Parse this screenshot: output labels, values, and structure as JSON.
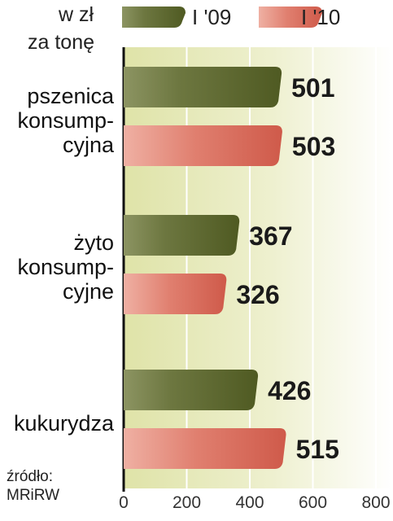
{
  "header": {
    "unit_line1": "w zł",
    "unit_line2": "za tonę"
  },
  "source": {
    "line1": "źródło:",
    "line2": "MRiRW"
  },
  "colors": {
    "series_2009": "#5e6b30",
    "series_2010": "#d96a5c",
    "background_band": "#e8ebc2"
  },
  "chart_data": {
    "type": "bar",
    "orientation": "horizontal",
    "categories": [
      [
        "pszenica",
        "konsump-",
        "cyjna"
      ],
      [
        "żyto",
        "konsump-",
        "cyjne"
      ],
      [
        "kukurydza"
      ]
    ],
    "series": [
      {
        "name": "I '09",
        "values": [
          501,
          367,
          426
        ]
      },
      {
        "name": "I '10",
        "values": [
          503,
          326,
          515
        ]
      }
    ],
    "xticks": [
      "0",
      "200",
      "400",
      "600",
      "800"
    ],
    "xlim": [
      0,
      800
    ],
    "legend": "top",
    "grid": true
  }
}
